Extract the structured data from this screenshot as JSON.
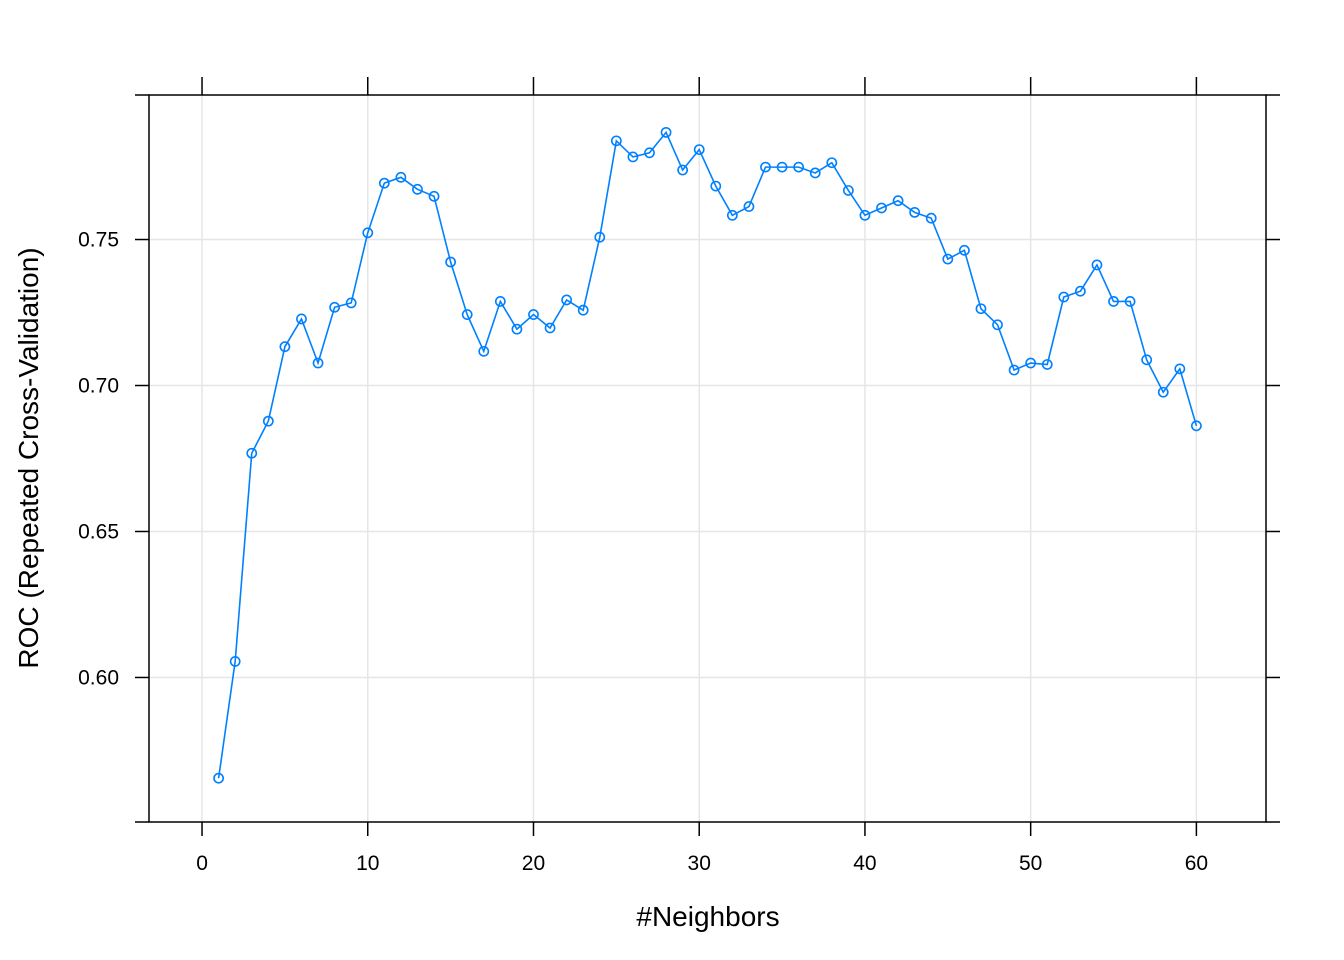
{
  "chart_data": {
    "type": "line",
    "title": "",
    "xlabel": "#Neighbors",
    "ylabel": "ROC (Repeated Cross-Validation)",
    "xlim": [
      -3.2,
      64.2
    ],
    "ylim": [
      0.5505,
      0.7995
    ],
    "xticks": [
      0,
      10,
      20,
      30,
      40,
      50,
      60
    ],
    "xtick_labels": [
      "0",
      "10",
      "20",
      "30",
      "40",
      "50",
      "60"
    ],
    "yticks": [
      0.6,
      0.65,
      0.7,
      0.75
    ],
    "ytick_labels": [
      "0.60",
      "0.65",
      "0.70",
      "0.75"
    ],
    "grid": true,
    "line_color": "#0080ff",
    "grid_color": "#e6e6e6",
    "series": [
      {
        "x": [
          1,
          2,
          3,
          4,
          5,
          6,
          7,
          8,
          9,
          10,
          11,
          12,
          13,
          14,
          15,
          16,
          17,
          18,
          19,
          20,
          21,
          22,
          23,
          24,
          25,
          26,
          27,
          28,
          29,
          30,
          31,
          32,
          33,
          34,
          35,
          36,
          37,
          38,
          39,
          40,
          41,
          42,
          43,
          44,
          45,
          46,
          47,
          48,
          49,
          50,
          51,
          52,
          53,
          54,
          55,
          56,
          57,
          58,
          59,
          60
        ],
        "values": [
          0.5655,
          0.6055,
          0.6768,
          0.6878,
          0.7133,
          0.7228,
          0.7077,
          0.7268,
          0.7283,
          0.7523,
          0.7693,
          0.7713,
          0.7672,
          0.7648,
          0.7423,
          0.7243,
          0.7117,
          0.7288,
          0.7193,
          0.7243,
          0.7197,
          0.7293,
          0.7258,
          0.7508,
          0.7838,
          0.7783,
          0.7797,
          0.7867,
          0.7738,
          0.7808,
          0.7683,
          0.7583,
          0.7613,
          0.7748,
          0.7748,
          0.7748,
          0.7728,
          0.7763,
          0.7668,
          0.7583,
          0.7608,
          0.7633,
          0.7593,
          0.7573,
          0.7433,
          0.7463,
          0.7263,
          0.7208,
          0.7053,
          0.7077,
          0.7072,
          0.7303,
          0.7323,
          0.7413,
          0.7288,
          0.7288,
          0.7088,
          0.6977,
          0.7057,
          0.6862
        ]
      }
    ]
  }
}
